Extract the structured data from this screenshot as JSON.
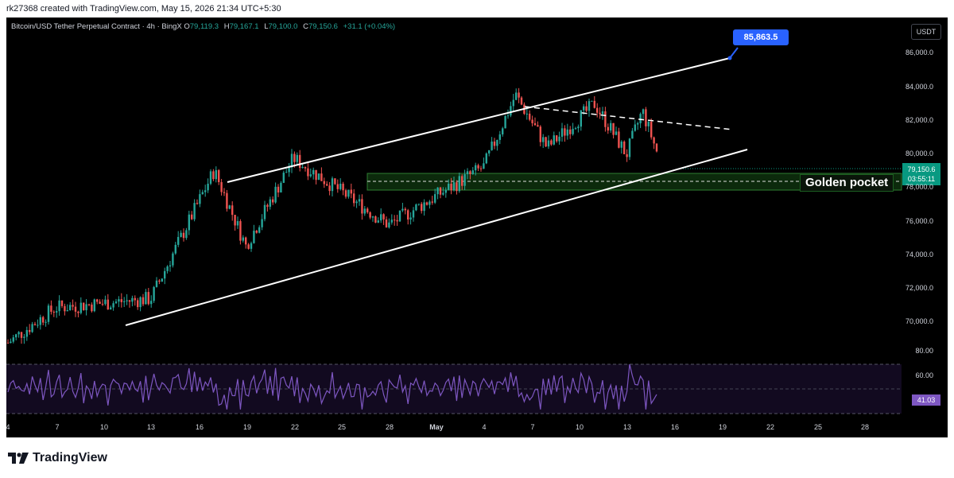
{
  "header": {
    "credit": "rk27368 created with TradingView.com, May 15, 2026 21:34 UTC+5:30"
  },
  "legend": {
    "symbol": "Bitcoin/USD Tether Perpetual Contract · 4h · BingX",
    "o_label": "O",
    "o_value": "79,119.3",
    "h_label": "H",
    "h_value": "79,167.1",
    "l_label": "L",
    "l_value": "79,100.0",
    "c_label": "C",
    "c_value": "79,150.6",
    "change": "+31.1 (+0.04%)"
  },
  "currency_button": "USDT",
  "price_tag": {
    "price": "79,150.6",
    "countdown": "03:55:11"
  },
  "rsi_tag": "41.03",
  "target_tag": "85,863.5",
  "golden_pocket_label": "Golden pocket",
  "y_axis_labels": [
    "86,000.0",
    "84,000.0",
    "82,000.0",
    "80,000.0",
    "78,000.0",
    "76,000.0",
    "74,000.0",
    "72,000.0",
    "70,000.0"
  ],
  "rsi_axis_labels": [
    "80.00",
    "60.00"
  ],
  "x_axis_labels": [
    "4",
    "7",
    "10",
    "13",
    "16",
    "19",
    "22",
    "25",
    "28",
    "May",
    "4",
    "7",
    "10",
    "13",
    "16",
    "19",
    "22",
    "25",
    "28"
  ],
  "footer": {
    "logo_text": "TradingView"
  },
  "colors": {
    "up": "#26a69a",
    "down": "#ef5350",
    "rsi_line": "#7e57c2",
    "golden_zone": "#1b5e20",
    "price_tag": "#089981",
    "target_tag": "#2962ff"
  },
  "chart_data": {
    "type": "candlestick",
    "symbol": "Bitcoin/USD Tether Perpetual Contract",
    "timeframe": "4h",
    "exchange": "BingX",
    "ylim": [
      68000,
      87000
    ],
    "last_price": 79150.6,
    "target": 85863.5,
    "key_points": [
      {
        "x": "Apr 4",
        "y": 68500
      },
      {
        "x": "Apr 7",
        "y": 70500
      },
      {
        "x": "Apr 13",
        "y": 71000
      },
      {
        "x": "Apr 17",
        "y": 78300
      },
      {
        "x": "Apr 19",
        "y": 74000
      },
      {
        "x": "Apr 22",
        "y": 79000
      },
      {
        "x": "Apr 28",
        "y": 75200
      },
      {
        "x": "May 4",
        "y": 78500
      },
      {
        "x": "May 6",
        "y": 82600
      },
      {
        "x": "May 8",
        "y": 79600
      },
      {
        "x": "May 11",
        "y": 82100
      },
      {
        "x": "May 13",
        "y": 79200
      },
      {
        "x": "May 14",
        "y": 81700
      },
      {
        "x": "May 15",
        "y": 79150
      }
    ],
    "rsi": {
      "last": 41.03,
      "levels": [
        70,
        50,
        30
      ]
    }
  }
}
